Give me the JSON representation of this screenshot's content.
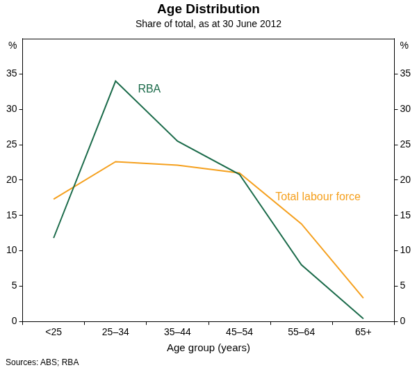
{
  "chart_data": {
    "type": "line",
    "title": "Age Distribution",
    "subtitle": "Share of total, as at 30 June 2012",
    "x_label": "Age group (years)",
    "y_unit": "%",
    "source": "Sources: ABS; RBA",
    "categories": [
      "<25",
      "25–34",
      "35–44",
      "45–54",
      "55–64",
      "65+"
    ],
    "series": [
      {
        "name": "RBA",
        "color": "#1b6b4a",
        "values": [
          11.8,
          34.0,
          25.5,
          20.8,
          8.0,
          0.4
        ]
      },
      {
        "name": "Total labour force",
        "color": "#f5a01e",
        "values": [
          17.3,
          22.6,
          22.1,
          21.0,
          13.8,
          3.3
        ]
      }
    ],
    "ylim": [
      0,
      40
    ],
    "yticks": [
      0,
      5,
      10,
      15,
      20,
      25,
      30,
      35
    ],
    "grid": false,
    "marker": "none"
  }
}
